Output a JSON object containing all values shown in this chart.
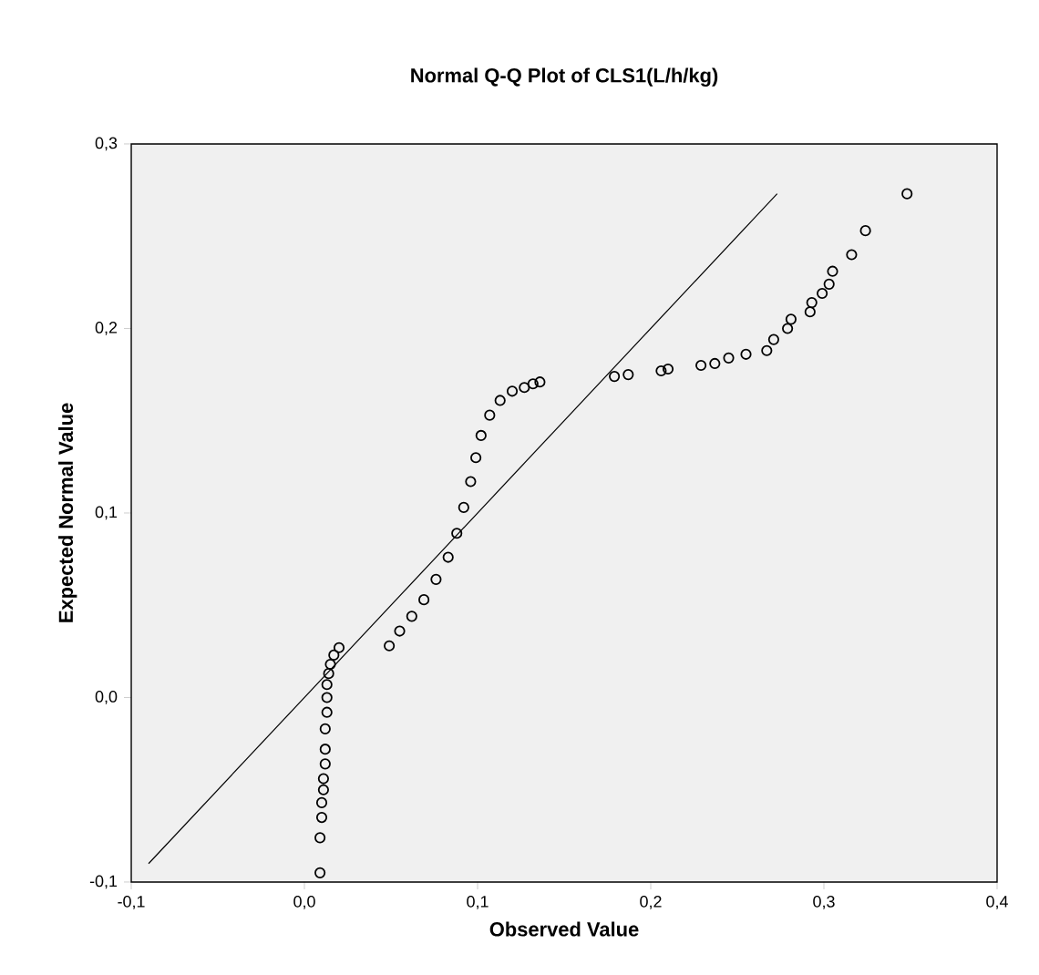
{
  "chart_data": {
    "type": "scatter",
    "title": "Normal Q-Q Plot of CLS1(L/h/kg)",
    "xlabel": "Observed Value",
    "ylabel": "Expected Normal Value",
    "xlim": [
      -0.1,
      0.4
    ],
    "ylim": [
      -0.1,
      0.3
    ],
    "xticks": [
      {
        "value": -0.1,
        "label": "-0,1"
      },
      {
        "value": 0.0,
        "label": "0,0"
      },
      {
        "value": 0.1,
        "label": "0,1"
      },
      {
        "value": 0.2,
        "label": "0,2"
      },
      {
        "value": 0.3,
        "label": "0,3"
      },
      {
        "value": 0.4,
        "label": "0,4"
      }
    ],
    "yticks": [
      {
        "value": -0.1,
        "label": "-0,1"
      },
      {
        "value": 0.0,
        "label": "0,0"
      },
      {
        "value": 0.1,
        "label": "0,1"
      },
      {
        "value": 0.2,
        "label": "0,2"
      },
      {
        "value": 0.3,
        "label": "0,3"
      }
    ],
    "grid": false,
    "series": [
      {
        "marker": "circle",
        "color": "#000000",
        "x": [
          0.009,
          0.009,
          0.01,
          0.01,
          0.011,
          0.011,
          0.012,
          0.012,
          0.012,
          0.013,
          0.013,
          0.013,
          0.014,
          0.015,
          0.017,
          0.02,
          0.049,
          0.055,
          0.062,
          0.069,
          0.076,
          0.083,
          0.088,
          0.092,
          0.096,
          0.099,
          0.102,
          0.107,
          0.113,
          0.12,
          0.127,
          0.132,
          0.136,
          0.179,
          0.187,
          0.206,
          0.21,
          0.229,
          0.237,
          0.245,
          0.255,
          0.267,
          0.271,
          0.279,
          0.281,
          0.292,
          0.293,
          0.299,
          0.303,
          0.305,
          0.316,
          0.324,
          0.348
        ],
        "values": [
          -0.095,
          -0.076,
          -0.065,
          -0.057,
          -0.05,
          -0.044,
          -0.036,
          -0.028,
          -0.017,
          -0.008,
          0.0,
          0.007,
          0.013,
          0.018,
          0.023,
          0.027,
          0.028,
          0.036,
          0.044,
          0.053,
          0.064,
          0.076,
          0.089,
          0.103,
          0.117,
          0.13,
          0.142,
          0.153,
          0.161,
          0.166,
          0.168,
          0.17,
          0.171,
          0.174,
          0.175,
          0.177,
          0.178,
          0.18,
          0.181,
          0.184,
          0.186,
          0.188,
          0.194,
          0.2,
          0.205,
          0.209,
          0.214,
          0.219,
          0.224,
          0.231,
          0.24,
          0.253,
          0.273
        ]
      },
      {
        "type": "line",
        "marker": "none",
        "color": "#000000",
        "x": [
          -0.09,
          0.273
        ],
        "values": [
          -0.09,
          0.273
        ]
      }
    ]
  }
}
